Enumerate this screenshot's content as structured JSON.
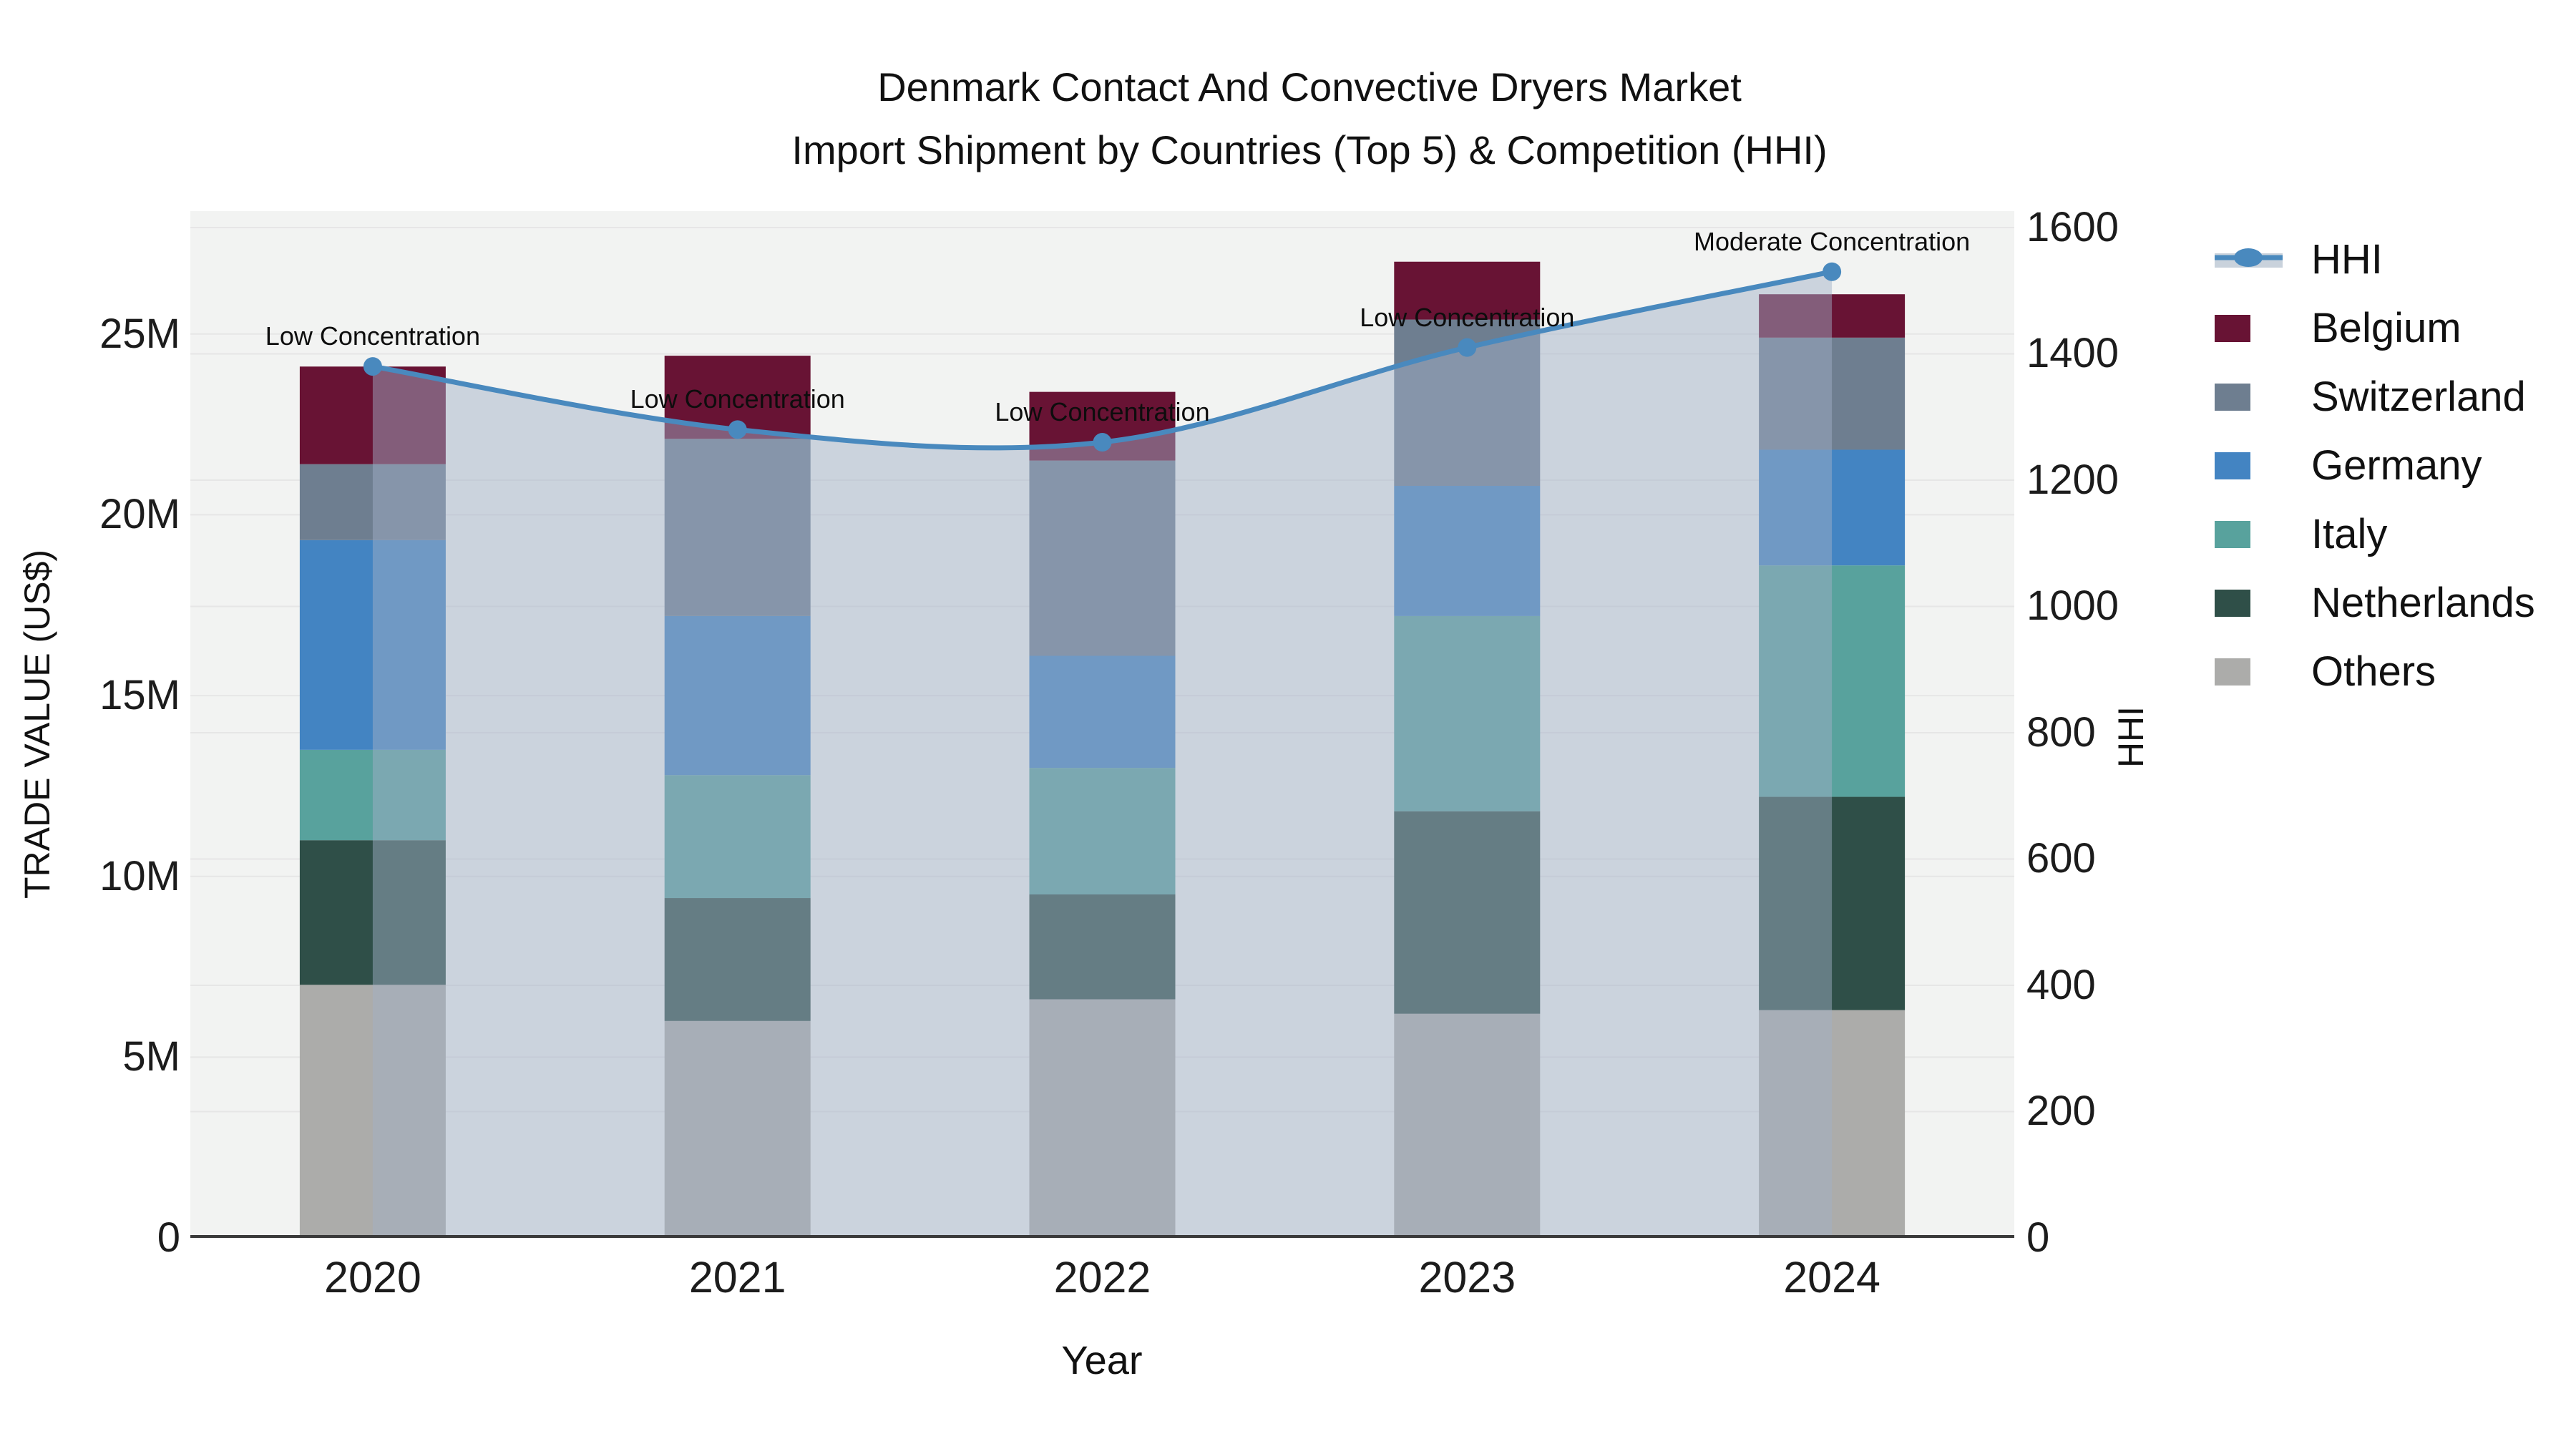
{
  "title": {
    "line1": "Denmark Contact And Convective Dryers Market",
    "line2": "Import Shipment by Countries (Top 5) & Competition (HHI)"
  },
  "axes": {
    "x_title": "Year",
    "y_left_title": "TRADE VALUE (US$)",
    "y_right_title": "HHI",
    "y_left_ticks": [
      "0",
      "5M",
      "10M",
      "15M",
      "20M",
      "25M"
    ],
    "y_left_tick_values": [
      0,
      5,
      10,
      15,
      20,
      25
    ],
    "y_left_max": 28.4,
    "y_right_ticks": [
      "0",
      "200",
      "400",
      "600",
      "800",
      "1000",
      "1200",
      "1400",
      "1600"
    ],
    "y_right_tick_values": [
      0,
      200,
      400,
      600,
      800,
      1000,
      1200,
      1400,
      1600
    ],
    "y_right_max": 1626
  },
  "legend": {
    "items": [
      {
        "label": "HHI",
        "type": "line",
        "color": "#4989be"
      },
      {
        "label": "Belgium",
        "type": "swatch",
        "color": "#681334"
      },
      {
        "label": "Switzerland",
        "type": "swatch",
        "color": "#6e7e90"
      },
      {
        "label": "Germany",
        "type": "swatch",
        "color": "#4384c2"
      },
      {
        "label": "Italy",
        "type": "swatch",
        "color": "#58a29d"
      },
      {
        "label": "Netherlands",
        "type": "swatch",
        "color": "#2f4f48"
      },
      {
        "label": "Others",
        "type": "swatch",
        "color": "#acacaa"
      }
    ]
  },
  "chart_data": {
    "type": "bar+line",
    "title": "Denmark Contact And Convective Dryers Market Import Shipment by Countries (Top 5) & Competition (HHI)",
    "categories": [
      "2020",
      "2021",
      "2022",
      "2023",
      "2024"
    ],
    "bar_value_unit": "Million US$ (trade value, left axis)",
    "series": [
      {
        "name": "Others",
        "color": "#acacaa",
        "values": [
          7.0,
          6.0,
          6.6,
          6.2,
          6.3
        ]
      },
      {
        "name": "Netherlands",
        "color": "#2f4f48",
        "values": [
          4.0,
          3.4,
          2.9,
          5.6,
          5.9
        ]
      },
      {
        "name": "Italy",
        "color": "#58a29d",
        "values": [
          2.5,
          3.4,
          3.5,
          5.4,
          6.4
        ]
      },
      {
        "name": "Germany",
        "color": "#4384c2",
        "values": [
          5.8,
          4.4,
          3.1,
          3.6,
          3.2
        ]
      },
      {
        "name": "Switzerland",
        "color": "#6e7e90",
        "values": [
          2.1,
          4.9,
          5.4,
          4.6,
          3.1
        ]
      },
      {
        "name": "Belgium",
        "color": "#681334",
        "values": [
          2.7,
          2.3,
          1.9,
          1.6,
          1.2
        ]
      }
    ],
    "stack_totals": [
      24.1,
      24.4,
      23.4,
      27.0,
      26.1
    ],
    "line": {
      "name": "HHI",
      "axis": "right",
      "color": "#4989be",
      "fill_color": "rgba(161,176,199,0.48)",
      "values": [
        1380,
        1280,
        1260,
        1410,
        1530
      ]
    },
    "annotations": [
      {
        "year": "2020",
        "text": "Low Concentration"
      },
      {
        "year": "2021",
        "text": "Low Concentration"
      },
      {
        "year": "2022",
        "text": "Low Concentration"
      },
      {
        "year": "2023",
        "text": "Low Concentration"
      },
      {
        "year": "2024",
        "text": "Moderate Concentration"
      }
    ],
    "layout": {
      "plot_bg": "#f2f3f2",
      "grid_color": "#e6e6e6",
      "baseline_color": "#3a3a3a",
      "legend_position": "right",
      "ylim_left": [
        0,
        28.4
      ],
      "ylim_right": [
        0,
        1626
      ]
    }
  }
}
